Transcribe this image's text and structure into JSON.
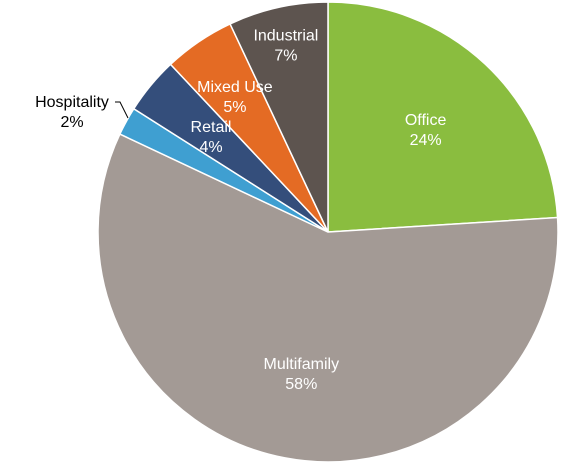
{
  "chart_data": {
    "type": "pie",
    "start_angle_deg": 0,
    "direction": "clockwise",
    "title": "",
    "legend": "none",
    "slices": [
      {
        "label": "Office",
        "value": 24,
        "value_label": "24%",
        "color": "#8ABD3F",
        "label_position": "inside"
      },
      {
        "label": "Multifamily",
        "value": 58,
        "value_label": "58%",
        "color": "#A39A95",
        "label_position": "inside"
      },
      {
        "label": "Hospitality",
        "value": 2,
        "value_label": "2%",
        "color": "#3F9FD1",
        "label_position": "outside"
      },
      {
        "label": "Retail",
        "value": 4,
        "value_label": "4%",
        "color": "#344E7B",
        "label_position": "inside"
      },
      {
        "label": "Mixed Use",
        "value": 5,
        "value_label": "5%",
        "color": "#E46B24",
        "label_position": "inside"
      },
      {
        "label": "Industrial",
        "value": 7,
        "value_label": "7%",
        "color": "#5D544F",
        "label_position": "inside"
      }
    ]
  }
}
